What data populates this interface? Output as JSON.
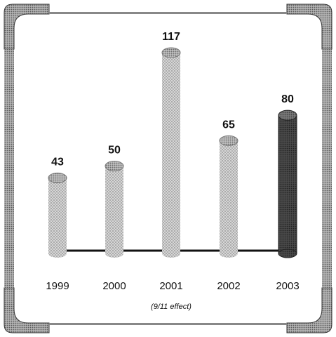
{
  "chart_data": {
    "type": "bar",
    "categories": [
      "1999",
      "2000",
      "2001",
      "2002",
      "2003"
    ],
    "values": [
      43,
      50,
      117,
      65,
      80
    ],
    "data_labels": [
      "43",
      "50",
      "117",
      "65",
      "80"
    ],
    "highlight_index": 4,
    "annotations": [
      {
        "category": "2001",
        "text": "(9/11 effect)"
      }
    ],
    "ylim": [
      0,
      117
    ],
    "grid": false,
    "colors": {
      "bar": "#c8c8c8",
      "bar_dots": "#8a8a8a",
      "highlight_bar": "#555555",
      "baseline": "#111111",
      "frame": "#8c8c8c"
    }
  }
}
